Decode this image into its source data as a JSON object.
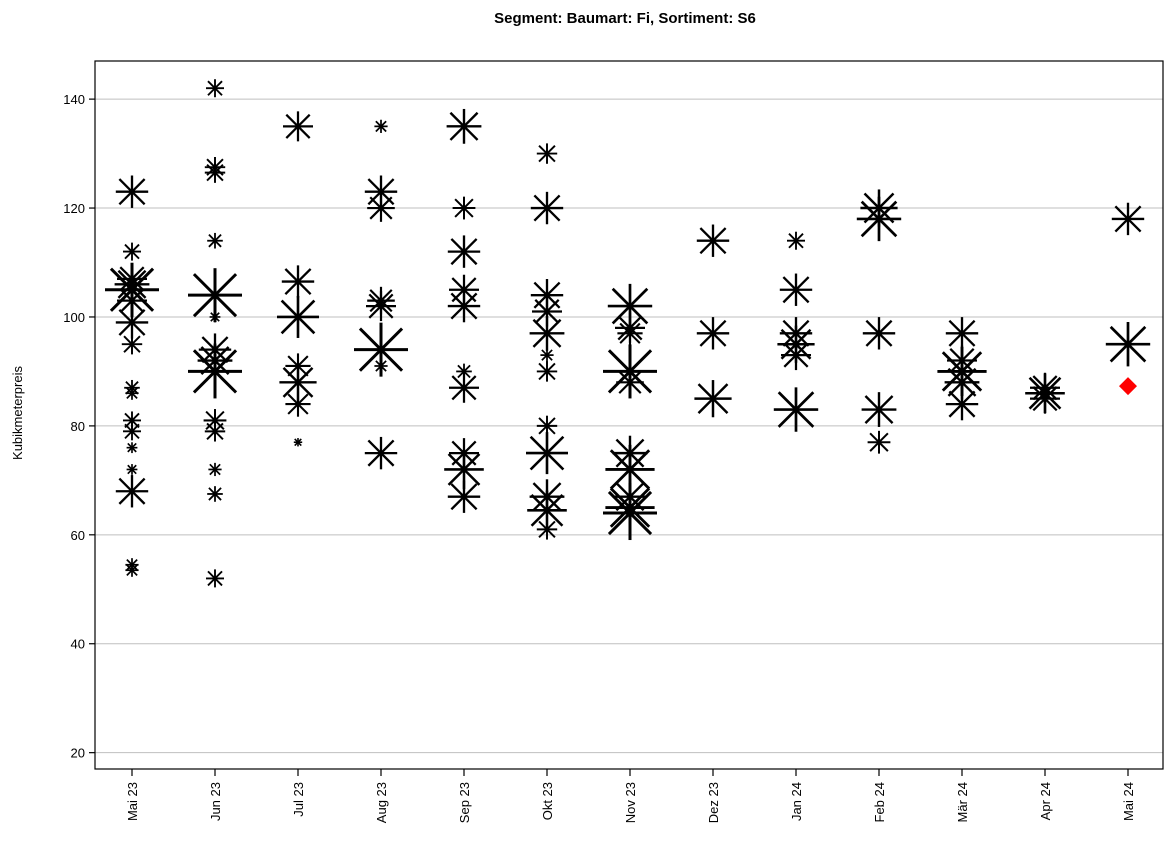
{
  "chart_data": {
    "type": "scatter",
    "title": "Segment: Baumart: Fi, Sortiment: S6",
    "xlabel": "",
    "ylabel": "Kubikmeterpreis",
    "categories": [
      "Mai 23",
      "Jun 23",
      "Jul 23",
      "Aug 23",
      "Sep 23",
      "Okt 23",
      "Nov 23",
      "Dez 23",
      "Jan 24",
      "Feb 24",
      "Mär 24",
      "Apr 24",
      "Mai 24"
    ],
    "ylim": [
      17,
      147
    ],
    "yticks": [
      20,
      40,
      60,
      80,
      100,
      120,
      140
    ],
    "grid": true,
    "marker_colors": {
      "observations": "#000000",
      "highlight": "#ff0000"
    },
    "marker_shapes": {
      "observations": "asterisk",
      "highlight": "diamond"
    },
    "series": [
      {
        "points": [
          {
            "x": "Mai 23",
            "y": 123,
            "weight": 0.55
          },
          {
            "x": "Mai 23",
            "y": 112,
            "weight": 0.25
          },
          {
            "x": "Mai 23",
            "y": 107,
            "weight": 0.5
          },
          {
            "x": "Mai 23",
            "y": 106,
            "weight": 0.6
          },
          {
            "x": "Mai 23",
            "y": 105,
            "weight": 1.0
          },
          {
            "x": "Mai 23",
            "y": 103,
            "weight": 0.5
          },
          {
            "x": "Mai 23",
            "y": 99,
            "weight": 0.55
          },
          {
            "x": "Mai 23",
            "y": 95,
            "weight": 0.3
          },
          {
            "x": "Mai 23",
            "y": 87,
            "weight": 0.2
          },
          {
            "x": "Mai 23",
            "y": 86,
            "weight": 0.15
          },
          {
            "x": "Mai 23",
            "y": 81,
            "weight": 0.25
          },
          {
            "x": "Mai 23",
            "y": 79,
            "weight": 0.25
          },
          {
            "x": "Mai 23",
            "y": 76,
            "weight": 0.1
          },
          {
            "x": "Mai 23",
            "y": 72,
            "weight": 0.1
          },
          {
            "x": "Mai 23",
            "y": 68,
            "weight": 0.55
          },
          {
            "x": "Mai 23",
            "y": 54.5,
            "weight": 0.15
          },
          {
            "x": "Mai 23",
            "y": 53.5,
            "weight": 0.15
          },
          {
            "x": "Jun 23",
            "y": 142,
            "weight": 0.25
          },
          {
            "x": "Jun 23",
            "y": 127.5,
            "weight": 0.3
          },
          {
            "x": "Jun 23",
            "y": 126.5,
            "weight": 0.3
          },
          {
            "x": "Jun 23",
            "y": 114,
            "weight": 0.2
          },
          {
            "x": "Jun 23",
            "y": 104,
            "weight": 1.0
          },
          {
            "x": "Jun 23",
            "y": 100,
            "weight": 0.1
          },
          {
            "x": "Jun 23",
            "y": 94,
            "weight": 0.55
          },
          {
            "x": "Jun 23",
            "y": 92,
            "weight": 0.6
          },
          {
            "x": "Jun 23",
            "y": 90,
            "weight": 1.0
          },
          {
            "x": "Jun 23",
            "y": 81,
            "weight": 0.35
          },
          {
            "x": "Jun 23",
            "y": 79,
            "weight": 0.3
          },
          {
            "x": "Jun 23",
            "y": 72,
            "weight": 0.15
          },
          {
            "x": "Jun 23",
            "y": 67.5,
            "weight": 0.2
          },
          {
            "x": "Jun 23",
            "y": 52,
            "weight": 0.25
          },
          {
            "x": "Jul 23",
            "y": 135,
            "weight": 0.5
          },
          {
            "x": "Jul 23",
            "y": 106.5,
            "weight": 0.55
          },
          {
            "x": "Jul 23",
            "y": 100,
            "weight": 0.75
          },
          {
            "x": "Jul 23",
            "y": 91,
            "weight": 0.4
          },
          {
            "x": "Jul 23",
            "y": 88,
            "weight": 0.65
          },
          {
            "x": "Jul 23",
            "y": 84,
            "weight": 0.4
          },
          {
            "x": "Jul 23",
            "y": 77,
            "weight": 0.05
          },
          {
            "x": "Aug 23",
            "y": 135,
            "weight": 0.15
          },
          {
            "x": "Aug 23",
            "y": 123,
            "weight": 0.55
          },
          {
            "x": "Aug 23",
            "y": 120,
            "weight": 0.45
          },
          {
            "x": "Aug 23",
            "y": 103,
            "weight": 0.45
          },
          {
            "x": "Aug 23",
            "y": 102,
            "weight": 0.5
          },
          {
            "x": "Aug 23",
            "y": 94,
            "weight": 1.0
          },
          {
            "x": "Aug 23",
            "y": 91,
            "weight": 0.15
          },
          {
            "x": "Aug 23",
            "y": 75,
            "weight": 0.55
          },
          {
            "x": "Sep 23",
            "y": 135,
            "weight": 0.6
          },
          {
            "x": "Sep 23",
            "y": 120,
            "weight": 0.35
          },
          {
            "x": "Sep 23",
            "y": 112,
            "weight": 0.55
          },
          {
            "x": "Sep 23",
            "y": 105,
            "weight": 0.5
          },
          {
            "x": "Sep 23",
            "y": 102,
            "weight": 0.55
          },
          {
            "x": "Sep 23",
            "y": 90,
            "weight": 0.2
          },
          {
            "x": "Sep 23",
            "y": 87,
            "weight": 0.5
          },
          {
            "x": "Sep 23",
            "y": 75,
            "weight": 0.5
          },
          {
            "x": "Sep 23",
            "y": 72,
            "weight": 0.7
          },
          {
            "x": "Sep 23",
            "y": 67,
            "weight": 0.55
          },
          {
            "x": "Okt 23",
            "y": 130,
            "weight": 0.3
          },
          {
            "x": "Okt 23",
            "y": 120,
            "weight": 0.55
          },
          {
            "x": "Okt 23",
            "y": 104,
            "weight": 0.55
          },
          {
            "x": "Okt 23",
            "y": 101,
            "weight": 0.5
          },
          {
            "x": "Okt 23",
            "y": 97,
            "weight": 0.6
          },
          {
            "x": "Okt 23",
            "y": 93,
            "weight": 0.15
          },
          {
            "x": "Okt 23",
            "y": 90,
            "weight": 0.3
          },
          {
            "x": "Okt 23",
            "y": 80,
            "weight": 0.3
          },
          {
            "x": "Okt 23",
            "y": 75,
            "weight": 0.75
          },
          {
            "x": "Okt 23",
            "y": 67,
            "weight": 0.6
          },
          {
            "x": "Okt 23",
            "y": 64.5,
            "weight": 0.7
          },
          {
            "x": "Okt 23",
            "y": 61,
            "weight": 0.3
          },
          {
            "x": "Nov 23",
            "y": 102,
            "weight": 0.8
          },
          {
            "x": "Nov 23",
            "y": 98,
            "weight": 0.5
          },
          {
            "x": "Nov 23",
            "y": 97,
            "weight": 0.4
          },
          {
            "x": "Nov 23",
            "y": 90,
            "weight": 1.0
          },
          {
            "x": "Nov 23",
            "y": 88,
            "weight": 0.45
          },
          {
            "x": "Nov 23",
            "y": 75,
            "weight": 0.6
          },
          {
            "x": "Nov 23",
            "y": 72,
            "weight": 0.9
          },
          {
            "x": "Nov 23",
            "y": 67,
            "weight": 0.6
          },
          {
            "x": "Nov 23",
            "y": 65,
            "weight": 0.9
          },
          {
            "x": "Nov 23",
            "y": 64,
            "weight": 1.0
          },
          {
            "x": "Dez 23",
            "y": 114,
            "weight": 0.55
          },
          {
            "x": "Dez 23",
            "y": 97,
            "weight": 0.55
          },
          {
            "x": "Dez 23",
            "y": 85,
            "weight": 0.65
          },
          {
            "x": "Jan 24",
            "y": 114,
            "weight": 0.25
          },
          {
            "x": "Jan 24",
            "y": 105,
            "weight": 0.55
          },
          {
            "x": "Jan 24",
            "y": 97,
            "weight": 0.55
          },
          {
            "x": "Jan 24",
            "y": 95,
            "weight": 0.65
          },
          {
            "x": "Jan 24",
            "y": 93,
            "weight": 0.5
          },
          {
            "x": "Jan 24",
            "y": 83,
            "weight": 0.8
          },
          {
            "x": "Feb 24",
            "y": 120,
            "weight": 0.65
          },
          {
            "x": "Feb 24",
            "y": 118,
            "weight": 0.8
          },
          {
            "x": "Feb 24",
            "y": 97,
            "weight": 0.55
          },
          {
            "x": "Feb 24",
            "y": 83,
            "weight": 0.6
          },
          {
            "x": "Feb 24",
            "y": 77,
            "weight": 0.35
          },
          {
            "x": "Mär 24",
            "y": 97,
            "weight": 0.55
          },
          {
            "x": "Mär 24",
            "y": 92,
            "weight": 0.5
          },
          {
            "x": "Mär 24",
            "y": 90,
            "weight": 0.9
          },
          {
            "x": "Mär 24",
            "y": 88,
            "weight": 0.6
          },
          {
            "x": "Mär 24",
            "y": 84,
            "weight": 0.55
          },
          {
            "x": "Apr 24",
            "y": 87,
            "weight": 0.5
          },
          {
            "x": "Apr 24",
            "y": 86,
            "weight": 0.7
          },
          {
            "x": "Apr 24",
            "y": 85,
            "weight": 0.5
          },
          {
            "x": "Mai 24",
            "y": 118,
            "weight": 0.55
          },
          {
            "x": "Mai 24",
            "y": 95,
            "weight": 0.8
          }
        ]
      },
      {
        "points": [
          {
            "x": "Mai 24",
            "y": 87.3
          }
        ]
      }
    ]
  }
}
